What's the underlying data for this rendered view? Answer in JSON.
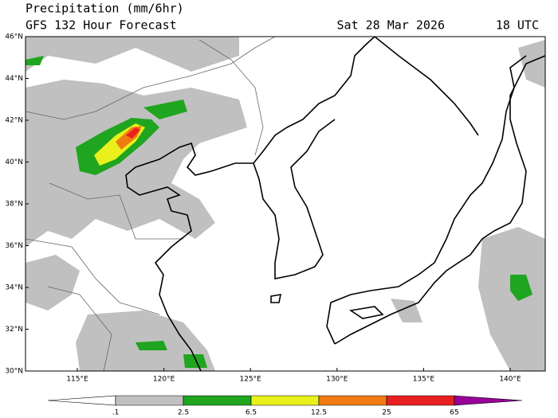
{
  "header": {
    "title": "Precipitation (mm/6hr)",
    "subtitle": "GFS 132 Hour Forecast",
    "date": "Sat 28 Mar 2026",
    "time": "18 UTC"
  },
  "map": {
    "lat_labels": [
      "46°N",
      "44°N",
      "42°N",
      "40°N",
      "38°N",
      "36°N",
      "34°N",
      "32°N",
      "30°N"
    ],
    "lon_labels": [
      "115°E",
      "120°E",
      "125°E",
      "130°E",
      "135°E",
      "140°E"
    ]
  },
  "legend": {
    "labels": [
      ".1",
      "2.5",
      "6.5",
      "12.5",
      "25",
      "65"
    ],
    "colors": [
      "#ffffff",
      "#c0c0c0",
      "#1fa51f",
      "#e9f01c",
      "#f07b12",
      "#e8201f",
      "#990099"
    ]
  }
}
